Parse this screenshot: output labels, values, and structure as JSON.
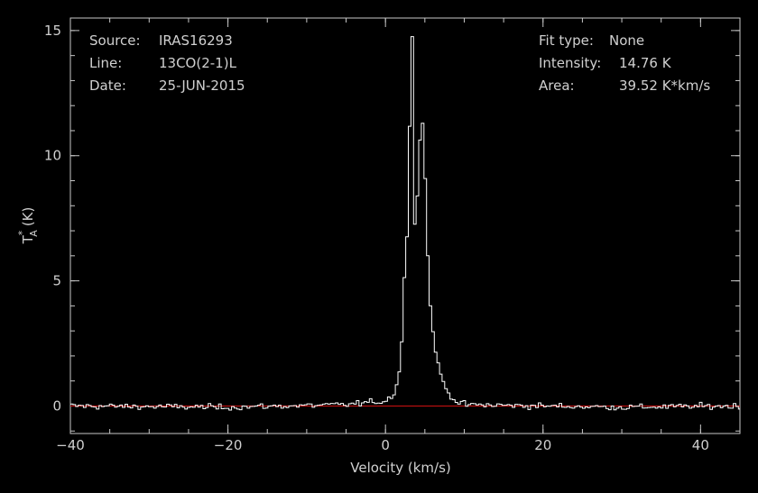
{
  "header": {
    "source_label": "Source:",
    "source_value": "IRAS16293",
    "line_label": "Line:",
    "line_value": "13CO(2-1)L",
    "date_label": "Date:",
    "date_value": "25-JUN-2015",
    "fit_label": "Fit type:",
    "fit_value": "None",
    "intensity_label": "Intensity:",
    "intensity_value": "14.76 K",
    "area_label": "Area:",
    "area_value": "39.52 K*km/s"
  },
  "chart_data": {
    "type": "line",
    "xlabel": "Velocity (km/s)",
    "ylabel_main": "T",
    "ylabel_sup": "*",
    "ylabel_sub": "A",
    "ylabel_unit": "(K)",
    "xlim": [
      -40,
      45
    ],
    "ylim": [
      -1.1,
      15.5
    ],
    "x_ticks": [
      -40,
      -20,
      0,
      20,
      40
    ],
    "x_tick_labels": [
      "−40",
      "−20",
      "0",
      "20",
      "40"
    ],
    "y_ticks": [
      0,
      5,
      10,
      15
    ],
    "y_tick_labels": [
      "0",
      "5",
      "10",
      "15"
    ],
    "x_minor_step": 5,
    "y_minor_step": 1,
    "baseline": 0,
    "colors": {
      "spectrum": "#ffffff",
      "baseline": "#d01010",
      "axes": "#c8c8c8"
    },
    "series": [
      {
        "channel_width_kms": 0.33,
        "peak_velocity_kms": 3.3,
        "peak_value_K": 14.76,
        "secondary_peak_velocity_kms": 4.7,
        "secondary_peak_value_K": 11.4,
        "dip_velocity_kms": 3.8,
        "dip_value_K": 6.5,
        "noise_rms_K": 0.1,
        "points": [
          [
            -40,
            0.0
          ],
          [
            -20,
            -0.05
          ],
          [
            -5,
            0.05
          ],
          [
            0,
            0.2
          ],
          [
            1,
            0.45
          ],
          [
            1.6,
            1.0
          ],
          [
            2.0,
            2.0
          ],
          [
            2.3,
            4.5
          ],
          [
            2.6,
            6.0
          ],
          [
            2.9,
            8.0
          ],
          [
            3.1,
            12.0
          ],
          [
            3.3,
            14.76
          ],
          [
            3.5,
            12.0
          ],
          [
            3.7,
            7.5
          ],
          [
            3.8,
            6.5
          ],
          [
            4.0,
            8.0
          ],
          [
            4.3,
            10.5
          ],
          [
            4.7,
            11.4
          ],
          [
            5.0,
            9.5
          ],
          [
            5.3,
            6.5
          ],
          [
            5.7,
            4.0
          ],
          [
            6.2,
            2.5
          ],
          [
            7.0,
            1.2
          ],
          [
            8.0,
            0.5
          ],
          [
            9.0,
            0.2
          ],
          [
            10,
            0.05
          ],
          [
            20,
            0.0
          ],
          [
            30,
            -0.05
          ],
          [
            45,
            0.0
          ]
        ]
      }
    ]
  }
}
